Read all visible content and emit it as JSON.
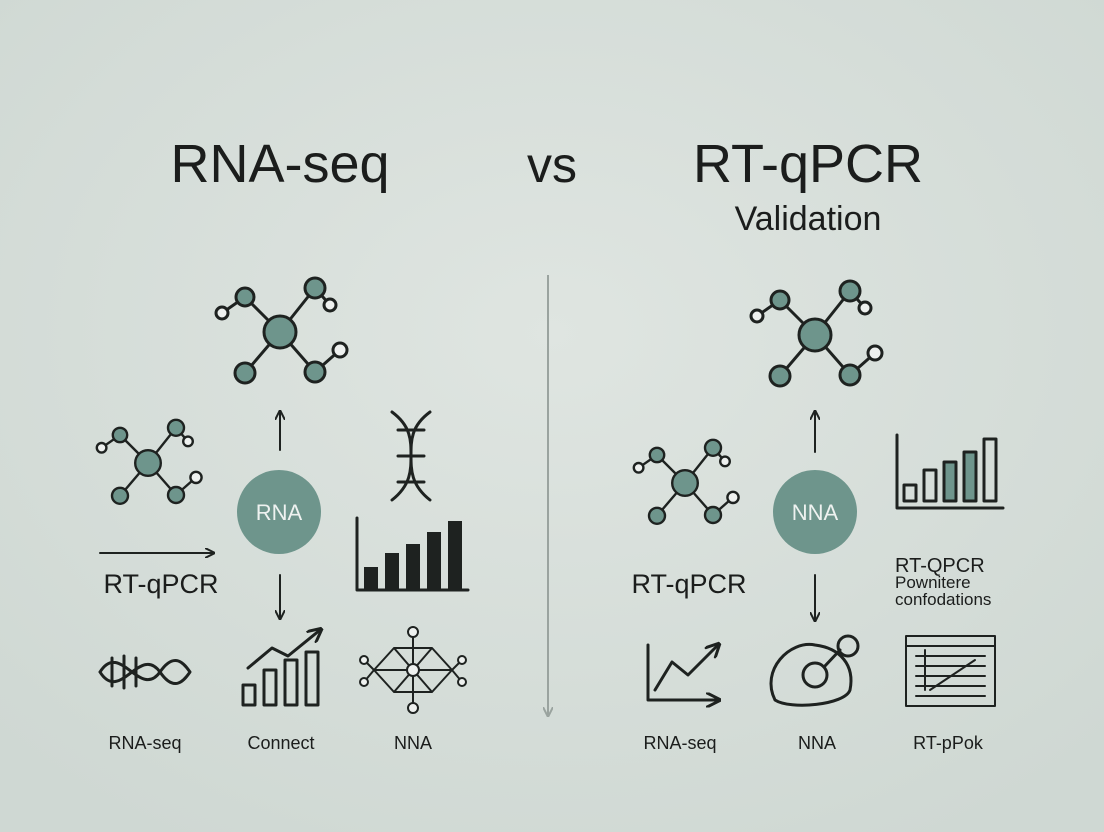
{
  "header": {
    "left_title": "RNA-seq",
    "vs": "vs",
    "right_title": "RT-qPCR",
    "subtitle": "Validation"
  },
  "left_panel": {
    "center_node": "RNA",
    "side_label": "RT-qPCR",
    "bottom_labels": [
      "RNA-seq",
      "Connect",
      "NNA"
    ]
  },
  "right_panel": {
    "center_node": "NNA",
    "side_label": "RT-qPCR",
    "note_lines": [
      "RT-QPCR",
      "Pownitere",
      "confodations"
    ],
    "bottom_labels": [
      "RNA-seq",
      "NNA",
      "RT-pPok"
    ]
  }
}
